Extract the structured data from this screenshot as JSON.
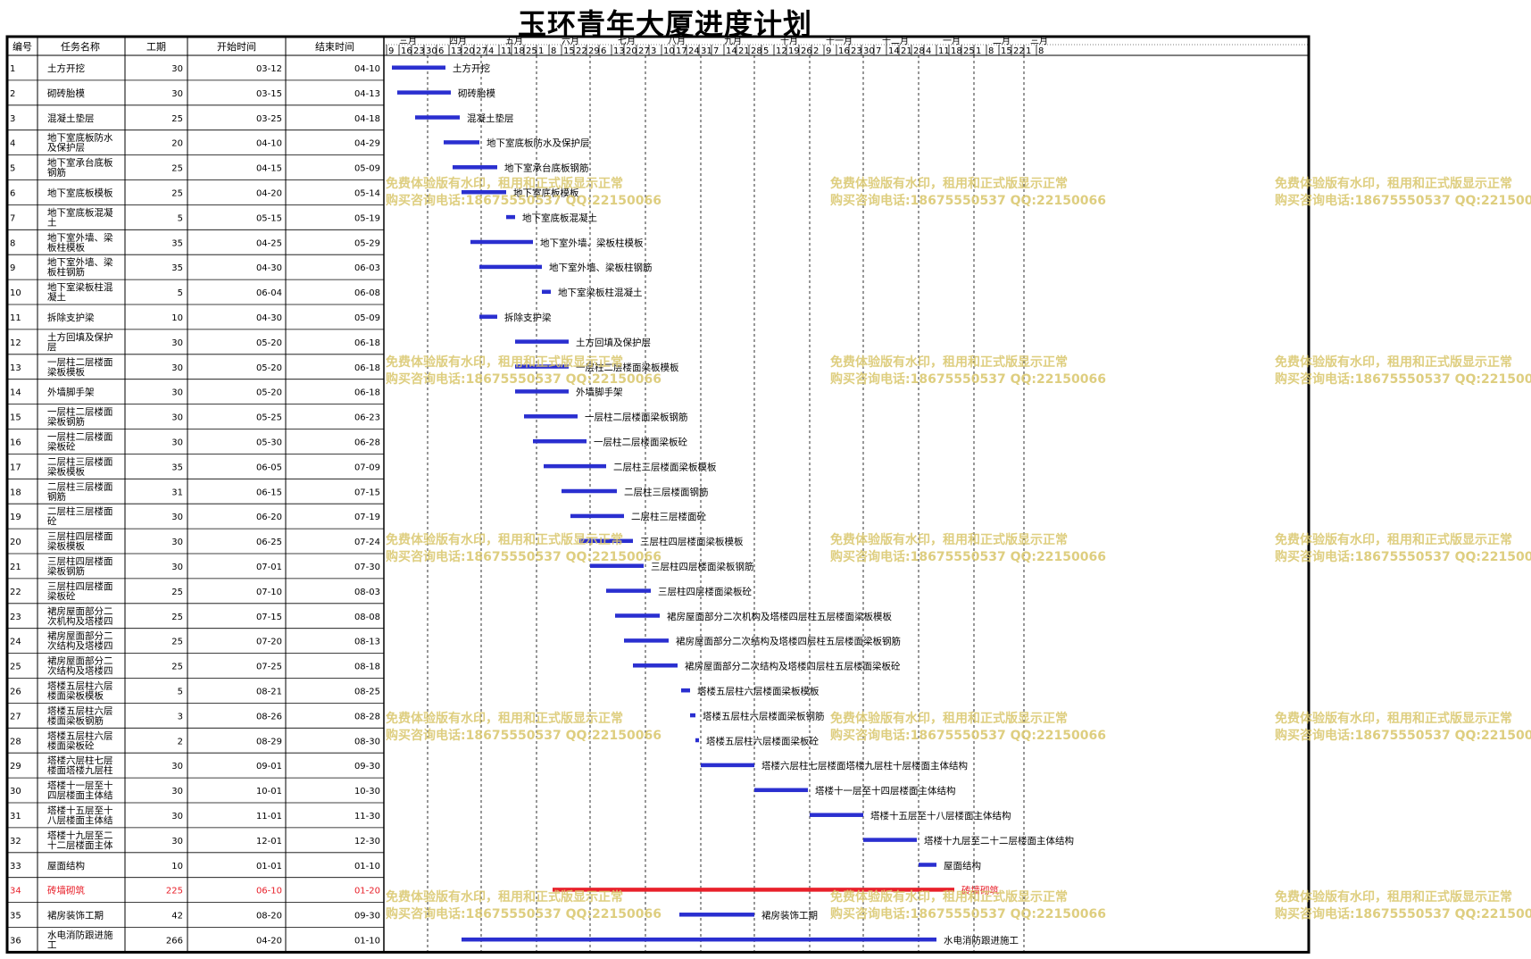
{
  "title": "玉环青年大厦进度计划",
  "table": {
    "headers": [
      "编号",
      "任务名称",
      "工期",
      "开始时间",
      "结束时间"
    ]
  },
  "timeline": {
    "months": [
      {
        "label": "三月",
        "days": [
          9,
          16,
          23
        ]
      },
      {
        "label": "四月",
        "days": [
          30,
          6,
          13,
          20,
          27
        ]
      },
      {
        "label": "五月",
        "days": [
          4,
          11,
          18,
          25
        ]
      },
      {
        "label": "六月",
        "days": [
          1,
          8,
          15,
          22,
          29
        ]
      },
      {
        "label": "七月",
        "days": [
          6,
          13,
          20,
          27
        ]
      },
      {
        "label": "八月",
        "days": [
          3,
          10,
          17,
          24
        ]
      },
      {
        "label": "九月",
        "days": [
          31,
          7,
          14,
          21,
          28
        ]
      },
      {
        "label": "十月",
        "days": [
          5,
          12,
          19,
          26
        ]
      },
      {
        "label": "十一月",
        "days": [
          2,
          9,
          16,
          23
        ]
      },
      {
        "label": "十二月",
        "days": [
          30,
          7,
          14,
          21,
          28
        ]
      },
      {
        "label": "一月",
        "days": [
          4,
          11,
          18,
          25
        ]
      },
      {
        "label": "二月",
        "days": [
          1,
          8,
          15,
          22
        ]
      },
      {
        "label": "三月",
        "days": [
          1,
          8
        ]
      }
    ]
  },
  "watermark": {
    "line1": "免费体验版有水印，租用和正式版显示正常",
    "line2": "购买咨询电话:18675550537 QQ:22150066"
  },
  "colors": {
    "bar": "#2a2fd0",
    "critical": "#e8202a",
    "grid": "#000000",
    "watermark": "#d9c66a"
  },
  "chart_data": {
    "type": "gantt",
    "title": "玉环青年大厦进度计划",
    "tasks": [
      {
        "id": "1",
        "name": "土方开挖",
        "duration": 30,
        "start": "03-12",
        "end": "04-10",
        "label": "土方开挖"
      },
      {
        "id": "2",
        "name": "砌砖胎模",
        "duration": 30,
        "start": "03-15",
        "end": "04-13",
        "label": "砌砖胎模"
      },
      {
        "id": "3",
        "name": "混凝土垫层",
        "duration": 25,
        "start": "03-25",
        "end": "04-18",
        "label": "混凝土垫层"
      },
      {
        "id": "4",
        "name": "地下室底板防水及保护层",
        "duration": 20,
        "start": "04-10",
        "end": "04-29",
        "label": "地下室底板防水及保护层"
      },
      {
        "id": "5",
        "name": "地下室承台底板钢筋",
        "duration": 25,
        "start": "04-15",
        "end": "05-09",
        "label": "地下室承台底板钢筋"
      },
      {
        "id": "6",
        "name": "地下室底板模板",
        "duration": 25,
        "start": "04-20",
        "end": "05-14",
        "label": "地下室底板模板"
      },
      {
        "id": "7",
        "name": "地下室底板混凝土",
        "duration": 5,
        "start": "05-15",
        "end": "05-19",
        "label": "地下室底板混凝土"
      },
      {
        "id": "8",
        "name": "地下室外墙、梁板柱模板",
        "duration": 35,
        "start": "04-25",
        "end": "05-29",
        "label": "地下室外墙、梁板柱模板"
      },
      {
        "id": "9",
        "name": "地下室外墙、梁板柱钢筋",
        "duration": 35,
        "start": "04-30",
        "end": "06-03",
        "label": "地下室外墙、梁板柱钢筋"
      },
      {
        "id": "10",
        "name": "地下室梁板柱混凝土",
        "duration": 5,
        "start": "06-04",
        "end": "06-08",
        "label": "地下室梁板柱混凝土"
      },
      {
        "id": "11",
        "name": "拆除支护梁",
        "duration": 10,
        "start": "04-30",
        "end": "05-09",
        "label": "拆除支护梁"
      },
      {
        "id": "12",
        "name": "土方回填及保护层",
        "duration": 30,
        "start": "05-20",
        "end": "06-18",
        "label": "土方回填及保护层"
      },
      {
        "id": "13",
        "name": "一层柱二层楼面梁板模板",
        "duration": 30,
        "start": "05-20",
        "end": "06-18",
        "label": "一层柱二层楼面梁板模板"
      },
      {
        "id": "14",
        "name": "外墙脚手架",
        "duration": 30,
        "start": "05-20",
        "end": "06-18",
        "label": "外墙脚手架"
      },
      {
        "id": "15",
        "name": "一层柱二层楼面梁板钢筋",
        "duration": 30,
        "start": "05-25",
        "end": "06-23",
        "label": "一层柱二层楼面梁板钢筋"
      },
      {
        "id": "16",
        "name": "一层柱二层楼面梁板砼",
        "duration": 30,
        "start": "05-30",
        "end": "06-28",
        "label": "一层柱二层楼面梁板砼"
      },
      {
        "id": "17",
        "name": "二层柱三层楼面梁板模板",
        "duration": 35,
        "start": "06-05",
        "end": "07-09",
        "label": "二层柱三层楼面梁板模板"
      },
      {
        "id": "18",
        "name": "二层柱三层楼面钢筋",
        "duration": 31,
        "start": "06-15",
        "end": "07-15",
        "label": "二层柱三层楼面钢筋"
      },
      {
        "id": "19",
        "name": "二层柱三层楼面砼",
        "duration": 30,
        "start": "06-20",
        "end": "07-19",
        "label": "二层柱三层楼面砼"
      },
      {
        "id": "20",
        "name": "三层柱四层楼面梁板模板",
        "duration": 30,
        "start": "06-25",
        "end": "07-24",
        "label": "三层柱四层楼面梁板模板"
      },
      {
        "id": "21",
        "name": "三层柱四层楼面梁板钢筋",
        "duration": 30,
        "start": "07-01",
        "end": "07-30",
        "label": "三层柱四层楼面梁板钢筋"
      },
      {
        "id": "22",
        "name": "三层柱四层楼面梁板砼",
        "duration": 25,
        "start": "07-10",
        "end": "08-03",
        "label": "三层柱四层楼面梁板砼"
      },
      {
        "id": "23",
        "name": "裙房屋面部分二次机构及塔楼四层柱五层楼面梁板模板",
        "duration": 25,
        "start": "07-15",
        "end": "08-08",
        "label": "裙房屋面部分二次机构及塔楼四层柱五层楼面梁板模板"
      },
      {
        "id": "24",
        "name": "裙房屋面部分二次结构及塔楼四层柱五层楼面梁板钢筋",
        "duration": 25,
        "start": "07-20",
        "end": "08-13",
        "label": "裙房屋面部分二次结构及塔楼四层柱五层楼面梁板钢筋"
      },
      {
        "id": "25",
        "name": "裙房屋面部分二次结构及塔楼四层柱五层楼面梁板砼",
        "duration": 25,
        "start": "07-25",
        "end": "08-18",
        "label": "裙房屋面部分二次结构及塔楼四层柱五层楼面梁板砼"
      },
      {
        "id": "26",
        "name": "塔楼五层柱六层楼面梁板模板",
        "duration": 5,
        "start": "08-21",
        "end": "08-25",
        "label": "塔楼五层柱六层楼面梁板模板"
      },
      {
        "id": "27",
        "name": "塔楼五层柱六层楼面梁板钢筋",
        "duration": 3,
        "start": "08-26",
        "end": "08-28",
        "label": "塔楼五层柱六层楼面梁板钢筋"
      },
      {
        "id": "28",
        "name": "塔楼五层柱六层楼面梁板砼",
        "duration": 2,
        "start": "08-29",
        "end": "08-30",
        "label": "塔楼五层柱六层楼面梁板砼"
      },
      {
        "id": "29",
        "name": "塔楼六层柱七层楼面塔楼九层柱十层楼面主体结构",
        "duration": 30,
        "start": "09-01",
        "end": "09-30",
        "label": "塔楼六层柱七层楼面塔楼九层柱十层楼面主体结构"
      },
      {
        "id": "30",
        "name": "塔楼十一层至十四层楼面主体结构",
        "duration": 30,
        "start": "10-01",
        "end": "10-30",
        "label": "塔楼十一层至十四层楼面主体结构"
      },
      {
        "id": "31",
        "name": "塔楼十五层至十八层楼面主体结构",
        "duration": 30,
        "start": "11-01",
        "end": "11-30",
        "label": "塔楼十五层至十八层楼面主体结构"
      },
      {
        "id": "32",
        "name": "塔楼十九层至二十二层楼面主体结构",
        "duration": 30,
        "start": "12-01",
        "end": "12-30",
        "label": "塔楼十九层至二十二层楼面主体结构"
      },
      {
        "id": "33",
        "name": "屋面结构",
        "duration": 10,
        "start": "01-01",
        "end": "01-10",
        "label": "屋面结构"
      },
      {
        "id": "34",
        "name": "砖墙砌筑",
        "duration": 225,
        "start": "06-10",
        "end": "01-20",
        "label": "砖墙砌筑",
        "critical": true
      },
      {
        "id": "35",
        "name": "裙房装饰工期",
        "duration": 42,
        "start": "08-20",
        "end": "09-30",
        "label": "裙房装饰工期"
      },
      {
        "id": "36",
        "name": "水电消防跟进施工",
        "duration": 266,
        "start": "04-20",
        "end": "01-10",
        "label": "水电消防跟进施工"
      }
    ]
  }
}
